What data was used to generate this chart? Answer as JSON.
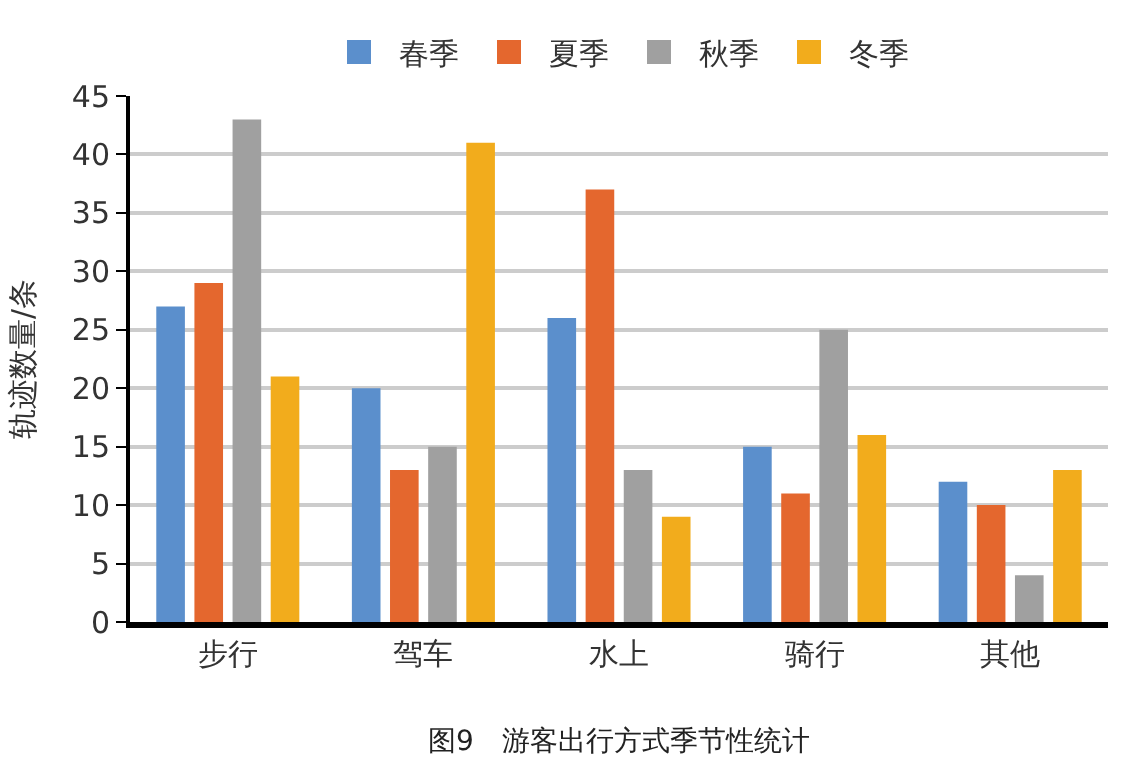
{
  "chart_data": {
    "type": "bar",
    "title": "图9　游客出行方式季节性统计",
    "ylabel": "轨迹数量/条",
    "categories": [
      "步行",
      "驾车",
      "水上",
      "骑行",
      "其他"
    ],
    "series": [
      {
        "name": "春季",
        "color": "#5b8fcc",
        "values": [
          27,
          20,
          26,
          15,
          12
        ]
      },
      {
        "name": "夏季",
        "color": "#e4672e",
        "values": [
          29,
          13,
          37,
          11,
          10
        ]
      },
      {
        "name": "秋季",
        "color": "#a0a0a0",
        "values": [
          43,
          15,
          13,
          25,
          4
        ]
      },
      {
        "name": "冬季",
        "color": "#f2ac1c",
        "values": [
          21,
          41,
          9,
          16,
          13
        ]
      }
    ],
    "ylim": [
      0,
      45
    ],
    "yticks": [
      0,
      5,
      10,
      15,
      20,
      25,
      30,
      35,
      40,
      45
    ],
    "grid": "y",
    "legend": "top"
  }
}
